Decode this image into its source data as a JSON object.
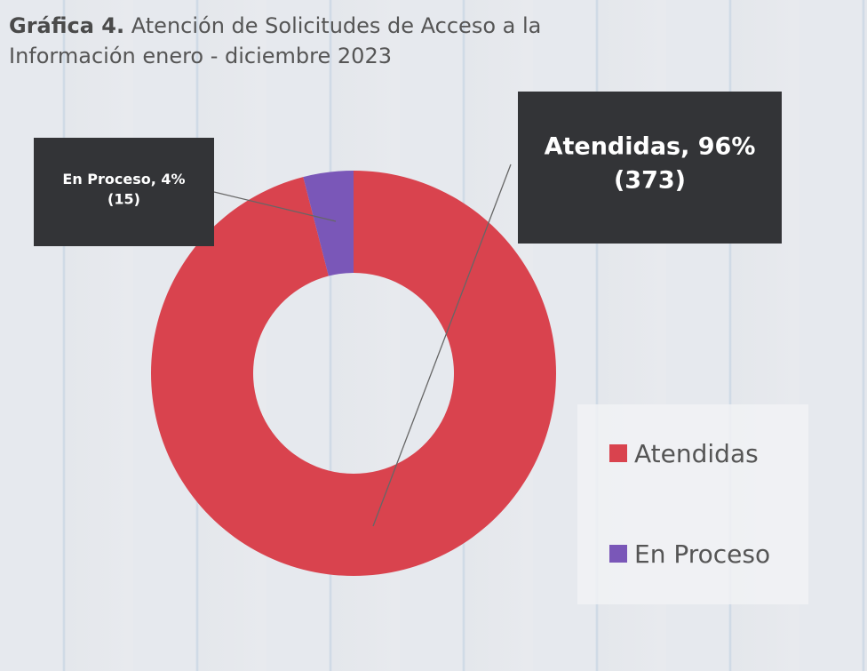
{
  "chart_data": {
    "type": "donut",
    "title_label": "Gráfica 4.",
    "title": "Atención de Solicitudes de Acceso a la Información enero - diciembre 2023",
    "categories": [
      "Atendidas",
      "En Proceso"
    ],
    "values": [
      96,
      4
    ],
    "value_labels": [
      "Atendidas, 96%",
      "En Proceso, 4%"
    ],
    "counts": [
      373,
      15
    ],
    "count_labels": [
      "(373)",
      "(15)"
    ],
    "colors": [
      "#d9434e",
      "#7a57b8"
    ],
    "legend": "right"
  }
}
